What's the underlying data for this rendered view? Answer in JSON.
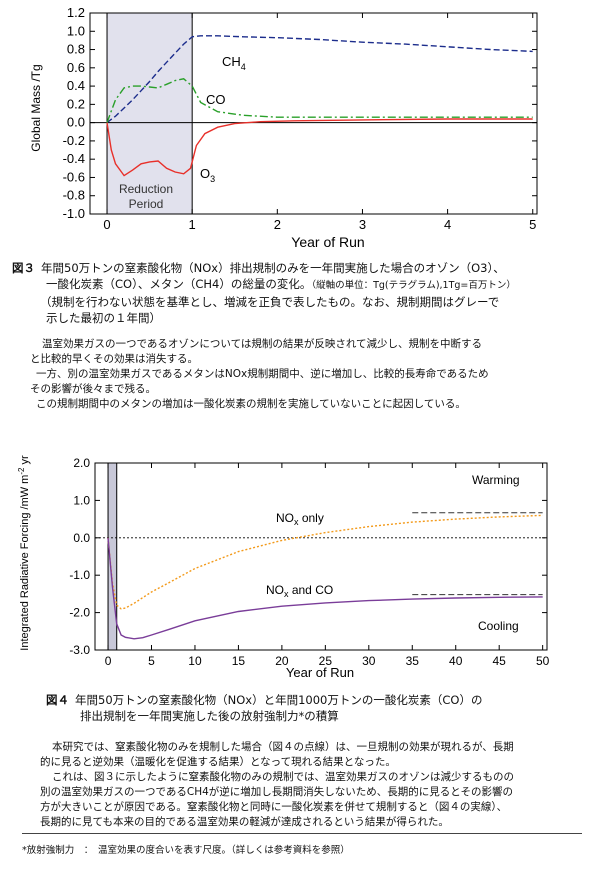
{
  "chart_data": [
    {
      "type": "line",
      "ylabel": "Global Mass /Tg",
      "xlabel": "Year of Run",
      "xlim": [
        -0.2,
        5.05
      ],
      "ylim": [
        -1.0,
        1.2
      ],
      "xticks": [
        0,
        1,
        2,
        3,
        4,
        5
      ],
      "yticks": [
        -1.0,
        -0.8,
        -0.6,
        -0.4,
        -0.2,
        0.0,
        0.2,
        0.4,
        0.6,
        0.8,
        1.0,
        1.2
      ],
      "shaded_region": {
        "x": [
          0,
          1
        ],
        "label_line1": "Reduction",
        "label_line2": "Period"
      },
      "series": [
        {
          "name": "CH4",
          "color": "#1c2d8c",
          "style": "dashed",
          "x": [
            0,
            0.1,
            0.2,
            0.3,
            0.4,
            0.5,
            0.6,
            0.7,
            0.8,
            0.9,
            1.0,
            1.1,
            1.3,
            1.6,
            2,
            2.5,
            3,
            3.5,
            4,
            4.5,
            5
          ],
          "y": [
            0,
            0.07,
            0.16,
            0.25,
            0.35,
            0.45,
            0.56,
            0.66,
            0.76,
            0.86,
            0.94,
            0.95,
            0.95,
            0.94,
            0.93,
            0.91,
            0.88,
            0.86,
            0.83,
            0.8,
            0.78
          ]
        },
        {
          "name": "CO",
          "color": "#2aa02a",
          "style": "dashdot",
          "x": [
            0,
            0.1,
            0.2,
            0.3,
            0.4,
            0.5,
            0.6,
            0.7,
            0.8,
            0.9,
            1.0,
            1.1,
            1.3,
            1.6,
            2,
            2.5,
            3,
            4,
            5
          ],
          "y": [
            0,
            0.25,
            0.38,
            0.4,
            0.4,
            0.39,
            0.38,
            0.42,
            0.46,
            0.48,
            0.4,
            0.22,
            0.12,
            0.08,
            0.06,
            0.06,
            0.06,
            0.06,
            0.06
          ]
        },
        {
          "name": "O3",
          "color": "#e8302a",
          "style": "solid",
          "x": [
            0,
            0.05,
            0.1,
            0.2,
            0.3,
            0.4,
            0.5,
            0.6,
            0.7,
            0.8,
            0.9,
            0.98,
            1.05,
            1.15,
            1.3,
            1.5,
            1.8,
            2.2,
            3,
            4,
            5
          ],
          "y": [
            0,
            -0.3,
            -0.45,
            -0.58,
            -0.52,
            -0.45,
            -0.43,
            -0.42,
            -0.5,
            -0.54,
            -0.56,
            -0.5,
            -0.25,
            -0.12,
            -0.05,
            -0.01,
            0.01,
            0.02,
            0.03,
            0.04,
            0.04
          ]
        }
      ]
    },
    {
      "type": "line",
      "ylabel": "Integrated Radiative Forcing /mW m-2 yr",
      "xlabel": "Year of Run",
      "xlim": [
        -1.5,
        50.5
      ],
      "ylim": [
        -3.0,
        2.0
      ],
      "xticks": [
        0,
        5,
        10,
        15,
        20,
        25,
        30,
        35,
        40,
        45,
        50
      ],
      "yticks": [
        -3.0,
        -2.0,
        -1.0,
        0.0,
        1.0,
        2.0
      ],
      "shaded_region": {
        "x": [
          0,
          1
        ]
      },
      "annotations": {
        "warming": "Warming",
        "cooling": "Cooling"
      },
      "series": [
        {
          "name": "NOx only",
          "color": "#f39a1a",
          "style": "dotted",
          "x": [
            0,
            0.5,
            1,
            1.5,
            2,
            3,
            4,
            5,
            7,
            10,
            15,
            20,
            25,
            30,
            35,
            40,
            45,
            50
          ],
          "y": [
            0,
            -1.2,
            -1.8,
            -1.9,
            -1.88,
            -1.75,
            -1.6,
            -1.45,
            -1.2,
            -0.82,
            -0.37,
            -0.07,
            0.14,
            0.3,
            0.42,
            0.5,
            0.56,
            0.6
          ],
          "asymptote": 0.67
        },
        {
          "name": "NOx and CO",
          "color": "#7a3d99",
          "style": "solid",
          "x": [
            0,
            0.5,
            1,
            1.5,
            2,
            3,
            4,
            5,
            7,
            10,
            15,
            20,
            25,
            30,
            35,
            40,
            45,
            50
          ],
          "y": [
            0,
            -1.3,
            -2.3,
            -2.6,
            -2.66,
            -2.7,
            -2.67,
            -2.6,
            -2.45,
            -2.22,
            -1.97,
            -1.83,
            -1.74,
            -1.68,
            -1.64,
            -1.61,
            -1.59,
            -1.58
          ],
          "asymptote": -1.52
        }
      ]
    }
  ],
  "chart1_text": {
    "ch4": "CH",
    "ch4_sub": "4",
    "co": "CO",
    "o3": "O",
    "o3_sub": "3",
    "reduction1": "Reduction",
    "reduction2": "Period"
  },
  "chart2_text": {
    "warming": "Warming",
    "cooling": "Cooling",
    "nox_only_a": "NO",
    "nox_only_sub": "x",
    "nox_only_b": " only",
    "noxco_a": "NO",
    "noxco_sub": "x",
    "noxco_b": " and CO",
    "ylabel_a": "Integrated Radiative Forcing /mW m",
    "ylabel_sup": "-2",
    "ylabel_b": " yr"
  },
  "fig3": {
    "label": "図３",
    "line1": "年間50万トンの窒素酸化物（NOx）排出規制のみを一年間実施した場合のオゾン（O3）、",
    "line2": "一酸化炭素（CO）、メタン（CH4）の総量の変化。",
    "line2_small": "（縦軸の単位：Tg(テラグラム),1Tg=百万トン）",
    "line3": "（規制を行わない状態を基準とし、増減を正負で表したもの。なお、規制期間はグレーで",
    "line4": "示した最初の１年間）"
  },
  "para1": [
    "温室効果ガスの一つであるオゾンについては規制の結果が反映されて減少し、規制を中断する",
    "と比較的早くその効果は消失する。",
    "一方、別の温室効果ガスであるメタンはNOx規制期間中、逆に増加し、比較的長寿命であるため",
    "その影響が後々まで残る。",
    "この規制期間中のメタンの増加は一酸化炭素の規制を実施していないことに起因している。"
  ],
  "fig4": {
    "label": "図４",
    "line1": "年間50万トンの窒素酸化物（NOx）と年間1000万トンの一酸化炭素（CO）の",
    "line2": "排出規制を一年間実施した後の放射強制力*の積算"
  },
  "para2": [
    "本研究では、窒素酸化物のみを規制した場合（図４の点線）は、一旦規制の効果が現れるが、長期",
    "的に見ると逆効果（温暖化を促進する結果）となって現れる結果となった。",
    "これは、図３に示したように窒素酸化物のみの規制では、温室効果ガスのオゾンは減少するものの",
    "別の温室効果ガスの一つであるCH4が逆に増加し長期間消失しないため、長期的に見るとその影響の",
    "方が大きいことが原因である。窒素酸化物と同時に一酸化炭素を併せて規制すると（図４の実線）、",
    "長期的に見ても本来の目的である温室効果の軽減が達成されるという結果が得られた。"
  ],
  "footnote": "*放射強制力　：　温室効果の度合いを表す尺度。（詳しくは参考資料を参照）"
}
